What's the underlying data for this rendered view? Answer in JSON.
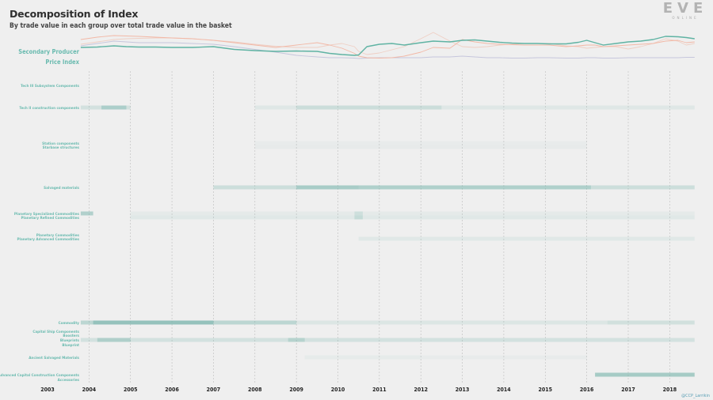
{
  "header": {
    "title": "Decomposition of Index",
    "subtitle": "By trade value in each group over total trade value in the basket"
  },
  "logo": {
    "main": "EVE",
    "sub": "ONLINE"
  },
  "credit": "@CCP_Larrikin",
  "colors": {
    "background": "#efefef",
    "index_line": "#5fb3a3",
    "primary_line": "#f2b8a6",
    "tertiary_line": "#c6c6dc",
    "pale_line": "#efcfc4",
    "band": "#74b2a9",
    "row_label": "#6bbbb0",
    "year_label": "#222222"
  },
  "chart_data": [
    {
      "type": "line",
      "name": "price-index",
      "ylabel": "Secondary Producer Price Index",
      "x": [
        2003.8,
        2004.2,
        2004.6,
        2004.9,
        2005.2,
        2005.6,
        2006.0,
        2006.5,
        2007.0,
        2007.5,
        2008.0,
        2008.5,
        2009.0,
        2009.5,
        2009.8,
        2010.1,
        2010.4,
        2010.5,
        2010.7,
        2011.0,
        2011.3,
        2011.6,
        2012.0,
        2012.3,
        2012.7,
        2013.0,
        2013.3,
        2013.6,
        2013.9,
        2014.2,
        2014.5,
        2014.8,
        2015.1,
        2015.5,
        2015.8,
        2016.0,
        2016.2,
        2016.4,
        2016.7,
        2017.0,
        2017.3,
        2017.6,
        2017.9,
        2018.2,
        2018.4,
        2018.6
      ],
      "series": [
        {
          "values": [
            60,
            61,
            64,
            62,
            61,
            61,
            60,
            60,
            62,
            55,
            52,
            50,
            51,
            50,
            45,
            42,
            40,
            41,
            62,
            68,
            70,
            66,
            72,
            76,
            74,
            78,
            79,
            76,
            73,
            71,
            70,
            70,
            69,
            69,
            73,
            78,
            72,
            66,
            70,
            74,
            76,
            80,
            88,
            87,
            85,
            82
          ]
        },
        {
          "values": [
            80,
            86,
            90,
            89,
            88,
            86,
            84,
            82,
            78,
            72,
            66,
            60,
            66,
            72,
            66,
            58,
            45,
            38,
            34,
            33,
            34,
            38,
            48,
            60,
            58,
            80,
            74,
            70,
            68,
            67,
            66,
            66,
            66,
            62,
            64,
            66,
            66,
            62,
            64,
            66,
            68,
            70,
            76,
            78,
            72,
            74
          ]
        },
        {
          "values": [
            64,
            70,
            76,
            74,
            72,
            72,
            72,
            70,
            68,
            62,
            55,
            48,
            40,
            36,
            34,
            34,
            33,
            32,
            33,
            34,
            34,
            34,
            34,
            36,
            36,
            38,
            36,
            34,
            34,
            33,
            33,
            34,
            34,
            33,
            33,
            34,
            34,
            33,
            33,
            34,
            34,
            34,
            34,
            34,
            35,
            35
          ]
        },
        {
          "values": [
            68,
            74,
            80,
            82,
            83,
            84,
            84,
            82,
            78,
            74,
            68,
            63,
            60,
            60,
            66,
            70,
            62,
            50,
            42,
            46,
            54,
            62,
            82,
            98,
            76,
            62,
            60,
            62,
            66,
            68,
            70,
            70,
            70,
            64,
            62,
            58,
            60,
            62,
            62,
            56,
            62,
            70,
            82,
            76,
            66,
            70
          ]
        }
      ]
    },
    {
      "type": "heatmap",
      "name": "group-share",
      "x_ticks": [
        "2003",
        "2004",
        "2005",
        "2006",
        "2007",
        "2008",
        "2009",
        "2010",
        "2011",
        "2012",
        "2013",
        "2014",
        "2015",
        "2016",
        "2017",
        "2018"
      ],
      "rows": [
        {
          "label": "Tech III Subsystem Components",
          "emphasis": "dark",
          "segments": []
        },
        {
          "label": "Tech II construction components",
          "emphasis": "dark",
          "segments": [
            [
              2003.8,
              2005.0,
              0.22
            ],
            [
              2004.3,
              2004.9,
              0.4
            ],
            [
              2008.0,
              2018.6,
              0.13
            ],
            [
              2009.0,
              2012.5,
              0.18
            ]
          ]
        },
        {
          "label": "Station components",
          "emphasis": "dark",
          "segments": [
            [
              2008.0,
              2016.0,
              0.05
            ]
          ]
        },
        {
          "label": "Starbase structures",
          "emphasis": "dark",
          "segments": [
            [
              2008.0,
              2016.0,
              0.06
            ]
          ]
        },
        {
          "label": "Salvaged materials",
          "emphasis": "dark",
          "segments": [
            [
              2007.0,
              2018.6,
              0.28
            ],
            [
              2009.0,
              2010.5,
              0.4
            ],
            [
              2010.5,
              2016.1,
              0.33
            ]
          ]
        },
        {
          "label": "Planetary Specialized Commodities",
          "emphasis": "dark",
          "segments": [
            [
              2003.8,
              2004.1,
              0.5
            ],
            [
              2005.0,
              2018.6,
              0.08
            ],
            [
              2010.4,
              2010.6,
              0.2
            ]
          ]
        },
        {
          "label": "Planetary Refined Commodities",
          "emphasis": "dark",
          "segments": [
            [
              2005.0,
              2018.6,
              0.12
            ],
            [
              2010.4,
              2010.6,
              0.25
            ]
          ]
        },
        {
          "label": "Planetary Commodities",
          "emphasis": "dark",
          "segments": []
        },
        {
          "label": "Planetary Advanced Commodities",
          "emphasis": "dark",
          "segments": [
            [
              2010.5,
              2018.6,
              0.12
            ]
          ]
        },
        {
          "label": "Commodity",
          "emphasis": "dark",
          "segments": [
            [
              2003.8,
              2009.0,
              0.42
            ],
            [
              2004.1,
              2007.0,
              0.55
            ],
            [
              2009.0,
              2018.6,
              0.15
            ],
            [
              2016.5,
              2018.6,
              0.1
            ]
          ]
        },
        {
          "label": "Capital Ship Components",
          "emphasis": "dark",
          "segments": []
        },
        {
          "label": "Boosters",
          "emphasis": "dark",
          "segments": []
        },
        {
          "label": "Blueprints",
          "emphasis": "dark",
          "segments": [
            [
              2003.8,
              2018.6,
              0.22
            ],
            [
              2004.2,
              2005.0,
              0.38
            ],
            [
              2008.8,
              2009.2,
              0.3
            ]
          ]
        },
        {
          "label": "Blueprint",
          "emphasis": "dark",
          "segments": []
        },
        {
          "label": "Ancient Salvaged Materials",
          "emphasis": "dark",
          "segments": [
            [
              2009.2,
              2012.0,
              0.07
            ],
            [
              2012.0,
              2016.0,
              0.05
            ]
          ]
        },
        {
          "label": "Advanced Capital Construction Components",
          "emphasis": "dark",
          "segments": [
            [
              2016.2,
              2018.6,
              0.6
            ]
          ]
        },
        {
          "label": "Accessories",
          "emphasis": "dark",
          "segments": []
        }
      ]
    }
  ]
}
